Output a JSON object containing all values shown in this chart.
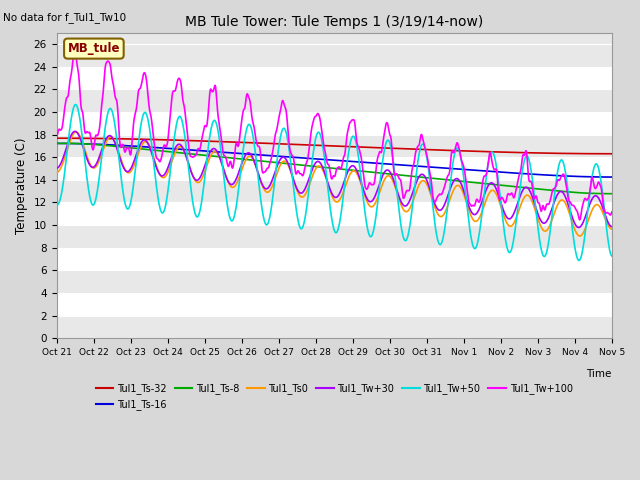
{
  "title": "MB Tule Tower: Tule Temps 1 (3/19/14-now)",
  "no_data_text": "No data for f_Tul1_Tw10",
  "xlabel": "Time",
  "ylabel": "Temperature (C)",
  "ylim": [
    0,
    27
  ],
  "yticks": [
    0,
    2,
    4,
    6,
    8,
    10,
    12,
    14,
    16,
    18,
    20,
    22,
    24,
    26
  ],
  "xtick_labels": [
    "Oct 21",
    "Oct 22",
    "Oct 23",
    "Oct 24",
    "Oct 25",
    "Oct 26",
    "Oct 27",
    "Oct 28",
    "Oct 29",
    "Oct 30",
    "Oct 31",
    "Nov 1",
    "Nov 2",
    "Nov 3",
    "Nov 4",
    "Nov 5"
  ],
  "bg_color": "#d8d8d8",
  "plot_bg_light": "#e8e8e8",
  "plot_bg_dark": "#d0d0d0",
  "grid_color": "#ffffff",
  "legend_label_box": "MB_tule",
  "legend_box_facecolor": "#ffffc0",
  "legend_box_edgecolor": "#806000",
  "legend_box_textcolor": "#880000",
  "series": [
    {
      "label": "Tul1_Ts-32",
      "color": "#cc0000",
      "lw": 1.2
    },
    {
      "label": "Tul1_Ts-16",
      "color": "#0000dd",
      "lw": 1.2
    },
    {
      "label": "Tul1_Ts-8",
      "color": "#00aa00",
      "lw": 1.2
    },
    {
      "label": "Tul1_Ts0",
      "color": "#ff9900",
      "lw": 1.2
    },
    {
      "label": "Tul1_Tw+30",
      "color": "#aa00ff",
      "lw": 1.2
    },
    {
      "label": "Tul1_Tw+50",
      "color": "#00dddd",
      "lw": 1.2
    },
    {
      "label": "Tul1_Tw+100",
      "color": "#ff00ff",
      "lw": 1.2
    }
  ]
}
